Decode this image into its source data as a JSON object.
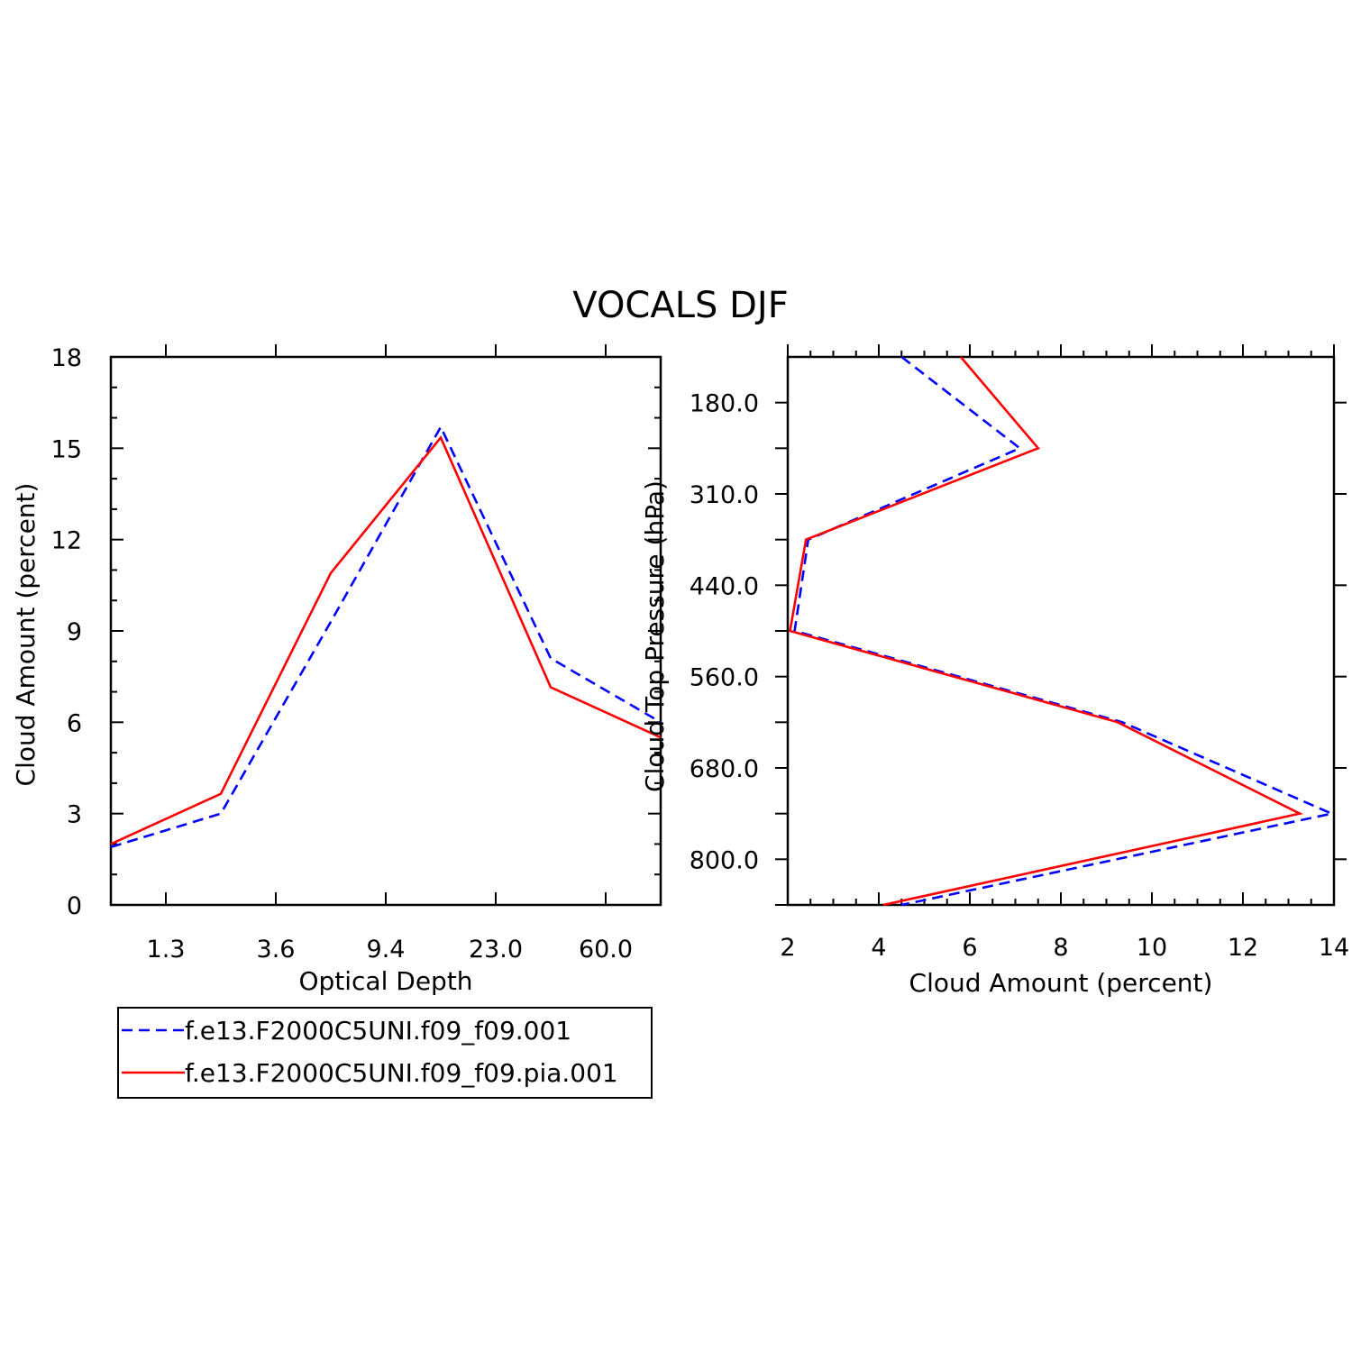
{
  "page_title": "VOCALS DJF",
  "chart_data": [
    {
      "type": "line",
      "xlabel": "Optical Depth",
      "ylabel": "Cloud Amount (percent)",
      "ylim": [
        0,
        18
      ],
      "y_ticks": [
        "0",
        "3",
        "6",
        "9",
        "12",
        "15",
        "18"
      ],
      "x_tick_labels": [
        "1.3",
        "3.6",
        "9.4",
        "23.0",
        "60.0"
      ],
      "x": [
        0,
        1,
        2,
        3,
        4,
        5
      ],
      "xlim": [
        0,
        5
      ],
      "series": [
        {
          "name": "f.e13.F2000C5UNI.f09_f09.001",
          "color": "#0000ff",
          "dash": "dashed",
          "values": [
            1.9,
            3.0,
            9.3,
            15.7,
            8.1,
            6.0
          ]
        },
        {
          "name": "f.e13.F2000C5UNI.f09_f09.pia.001",
          "color": "#ff0000",
          "dash": "solid",
          "values": [
            2.0,
            3.65,
            10.9,
            15.35,
            7.15,
            5.5
          ]
        }
      ]
    },
    {
      "type": "line",
      "xlabel": "Cloud Amount (percent)",
      "ylabel": "Cloud Top Pressure (hPa)",
      "xlim": [
        2,
        14
      ],
      "x_ticks": [
        "2",
        "4",
        "6",
        "8",
        "10",
        "12",
        "14"
      ],
      "y_tick_labels": [
        "180.0",
        "310.0",
        "440.0",
        "560.0",
        "680.0",
        "800.0"
      ],
      "y_index_range": [
        -0.5,
        5.5
      ],
      "y_index": [
        -0.5,
        0.5,
        1.5,
        2.5,
        3.5,
        4.5,
        5.5
      ],
      "series": [
        {
          "name": "f.e13.F2000C5UNI.f09_f09.001",
          "color": "#0000ff",
          "dash": "dashed",
          "values": [
            4.5,
            7.1,
            2.45,
            2.15,
            9.35,
            13.95,
            4.5
          ]
        },
        {
          "name": "f.e13.F2000C5UNI.f09_f09.pia.001",
          "color": "#ff0000",
          "dash": "solid",
          "values": [
            5.8,
            7.5,
            2.4,
            2.05,
            9.25,
            13.25,
            4.1
          ]
        }
      ]
    }
  ],
  "legend": {
    "entries": [
      {
        "label": "f.e13.F2000C5UNI.f09_f09.001",
        "color": "#0000ff",
        "dash": "dashed"
      },
      {
        "label": "f.e13.F2000C5UNI.f09_f09.pia.001",
        "color": "#ff0000",
        "dash": "solid"
      }
    ]
  }
}
